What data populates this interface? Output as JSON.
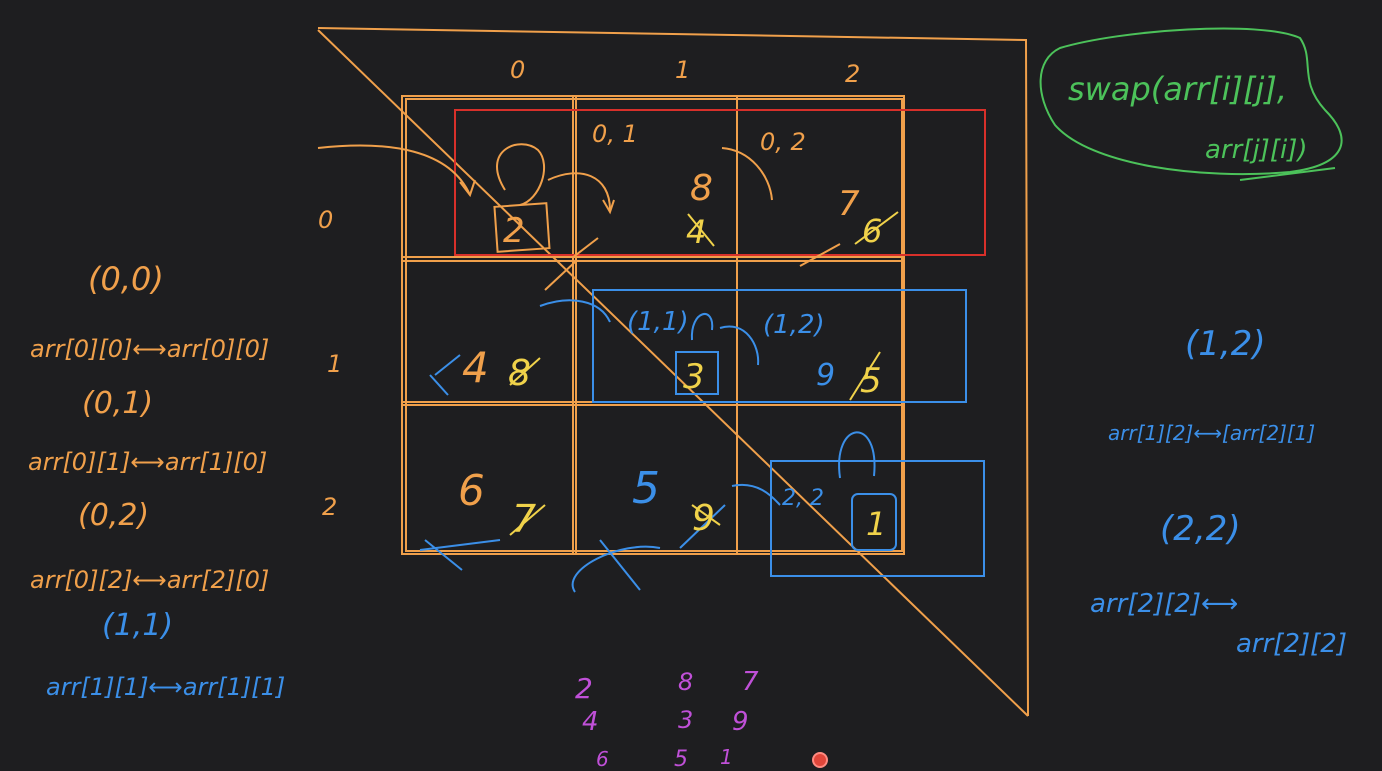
{
  "colors": {
    "background": "#1e1e20",
    "orange": "#f0a04b",
    "yellow": "#f0d24a",
    "blue": "#3b8fe8",
    "green": "#4cc25a",
    "red": "#d8302a",
    "pink": "#c050d8"
  },
  "grid": {
    "col_headers": [
      "0",
      "1",
      "2"
    ],
    "row_headers": [
      "0",
      "1",
      "2"
    ],
    "cells": {
      "c00_swapped": "2",
      "c01_coord": "0, 1",
      "c01_new": "8",
      "c01_old": "4",
      "c02_coord": "0, 2",
      "c02_new": "7",
      "c02_old": "6",
      "c10_new": "4",
      "c10_old": "8",
      "c11_coord": "(1,1)",
      "c11_value": "3",
      "c12_coord": "(1,2)",
      "c12_new": "9",
      "c12_old": "5",
      "c20_new": "6",
      "c20_old": "7",
      "c21_new": "5",
      "c21_old": "9",
      "c22_coord": "2, 2",
      "c22_value": "1"
    }
  },
  "swap_note": {
    "line1": "swap(arr[i][j],",
    "line2": "arr[j][i])"
  },
  "left_steps": [
    {
      "coord": "(0,0)",
      "swap": "arr[0][0]⟷arr[0][0]"
    },
    {
      "coord": "(0,1)",
      "swap": "arr[0][1]⟷arr[1][0]"
    },
    {
      "coord": "(0,2)",
      "swap": "arr[0][2]⟷arr[2][0]"
    },
    {
      "coord": "(1,1)",
      "swap": "arr[1][1]⟷arr[1][1]"
    }
  ],
  "right_steps": [
    {
      "coord": "(1,2)",
      "swap": "arr[1][2]⟷[arr[2][1]"
    },
    {
      "coord": "(2,2)",
      "swap": "arr[2][2]⟷",
      "swap2": "arr[2][2]"
    }
  ],
  "result_matrix": [
    [
      "2",
      "8",
      "7"
    ],
    [
      "4",
      "3",
      "9"
    ],
    [
      "6",
      "5",
      "1"
    ]
  ]
}
